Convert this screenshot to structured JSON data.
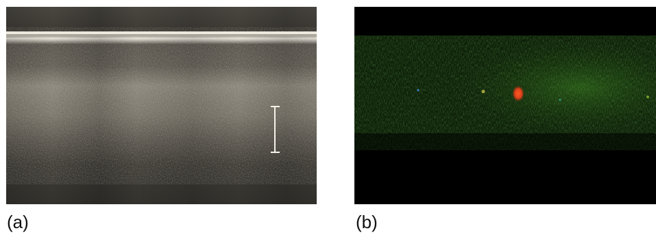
{
  "panels": [
    {
      "label": "(a)",
      "kind": "grayscale cross-sectional scan",
      "has_scale_bar": true
    },
    {
      "label": "(b)",
      "kind": "fluorescence overlay",
      "has_scale_bar": false
    }
  ],
  "colors": {
    "background": "#ffffff",
    "panel_a_base": "#3a3833",
    "panel_a_highlight": "#f2eee4",
    "panel_b_base": "#000000",
    "panel_b_green": "#1f4d12",
    "panel_b_red_spot": "#e0401a",
    "scale_bar": "#f4f2ea"
  }
}
